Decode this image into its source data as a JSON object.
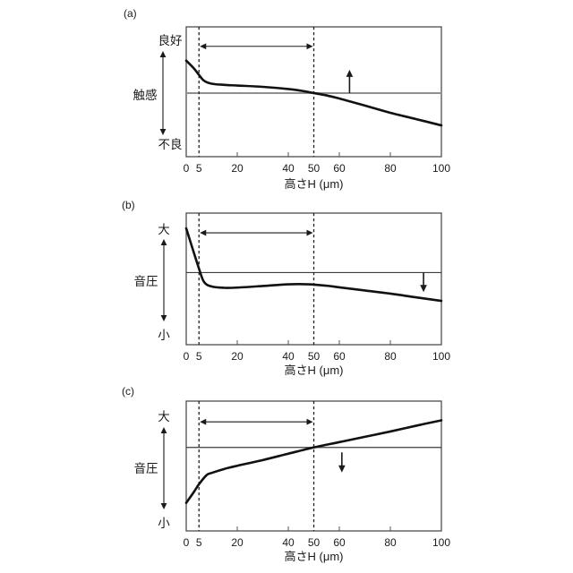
{
  "figure": {
    "description_labels": {
      "panel_a": "(a)",
      "panel_b": "(b)",
      "panel_c": "(c)"
    }
  },
  "colors": {
    "curve": "#111111",
    "frame": "#4d4d4d",
    "guide": "#222222",
    "arrow": "#1a1a1a",
    "tick": "#555555",
    "text": "#1a1a1a"
  },
  "chart_data": [
    {
      "panel": "(a)",
      "type": "line",
      "xlabel": "高さH (μm)",
      "ylabel": "触感",
      "y_axis_top_label": "良好",
      "y_axis_bottom_label": "不良",
      "y_scale": "qualitative (0 = 不良, 1 = 良好)",
      "xlim": [
        0,
        100
      ],
      "x_ticks": [
        0,
        5,
        20,
        40,
        50,
        60,
        80,
        100
      ],
      "dashed_guides_x": [
        5,
        50
      ],
      "range_arrow": {
        "x_from": 5,
        "x_to": 50,
        "y": 0.85
      },
      "threshold_line": {
        "y": 0.49,
        "color": "#8f8f8f",
        "width": 2
      },
      "trend_arrow": {
        "x": 64,
        "direction": "up",
        "y_from": 0.49,
        "y_to": 0.67
      },
      "curve_x": [
        0,
        3,
        5,
        7,
        10,
        15,
        20,
        30,
        40,
        46,
        50,
        55,
        60,
        70,
        80,
        90,
        100
      ],
      "curve_y": [
        0.74,
        0.68,
        0.63,
        0.585,
        0.562,
        0.553,
        0.548,
        0.538,
        0.521,
        0.505,
        0.49,
        0.472,
        0.448,
        0.394,
        0.338,
        0.29,
        0.241
      ]
    },
    {
      "panel": "(b)",
      "type": "line",
      "xlabel": "高さH (μm)",
      "ylabel": "音圧",
      "y_axis_top_label": "大",
      "y_axis_bottom_label": "小",
      "y_scale": "qualitative (0 = 小, 1 = 大)",
      "xlim": [
        0,
        100
      ],
      "x_ticks": [
        0,
        5,
        20,
        40,
        50,
        60,
        80,
        100
      ],
      "dashed_guides_x": [
        5,
        50
      ],
      "range_arrow": {
        "x_from": 5,
        "x_to": 50,
        "y": 0.85
      },
      "threshold_line": {
        "y": 0.548,
        "color": "#3c3c3c",
        "width": 1.2
      },
      "trend_arrow": {
        "x": 93,
        "direction": "down",
        "y_from": 0.548,
        "y_to": 0.4
      },
      "curve_x": [
        0,
        2,
        5,
        7,
        10,
        15,
        20,
        30,
        40,
        48,
        55,
        60,
        70,
        80,
        90,
        100
      ],
      "curve_y": [
        0.884,
        0.76,
        0.578,
        0.476,
        0.442,
        0.432,
        0.434,
        0.446,
        0.459,
        0.459,
        0.448,
        0.436,
        0.412,
        0.388,
        0.36,
        0.333
      ]
    },
    {
      "panel": "(c)",
      "type": "line",
      "xlabel": "高さH (μm)",
      "ylabel": "音圧",
      "y_axis_top_label": "大",
      "y_axis_bottom_label": "小",
      "y_scale": "qualitative (0 = 小, 1 = 大)",
      "xlim": [
        0,
        100
      ],
      "x_ticks": [
        0,
        5,
        20,
        40,
        50,
        60,
        80,
        100
      ],
      "dashed_guides_x": [
        5,
        50
      ],
      "range_arrow": {
        "x_from": 5,
        "x_to": 50,
        "y": 0.84
      },
      "threshold_line": {
        "y": 0.643,
        "color": "#3c3c3c",
        "width": 1.2
      },
      "trend_arrow": {
        "x": 61,
        "direction": "down",
        "y_from": 0.605,
        "y_to": 0.45
      },
      "curve_x": [
        0,
        3,
        5,
        8,
        10,
        15,
        20,
        30,
        40,
        50,
        60,
        70,
        80,
        90,
        100
      ],
      "curve_y": [
        0.216,
        0.3,
        0.36,
        0.43,
        0.447,
        0.478,
        0.502,
        0.546,
        0.595,
        0.643,
        0.684,
        0.725,
        0.766,
        0.81,
        0.852
      ]
    }
  ]
}
